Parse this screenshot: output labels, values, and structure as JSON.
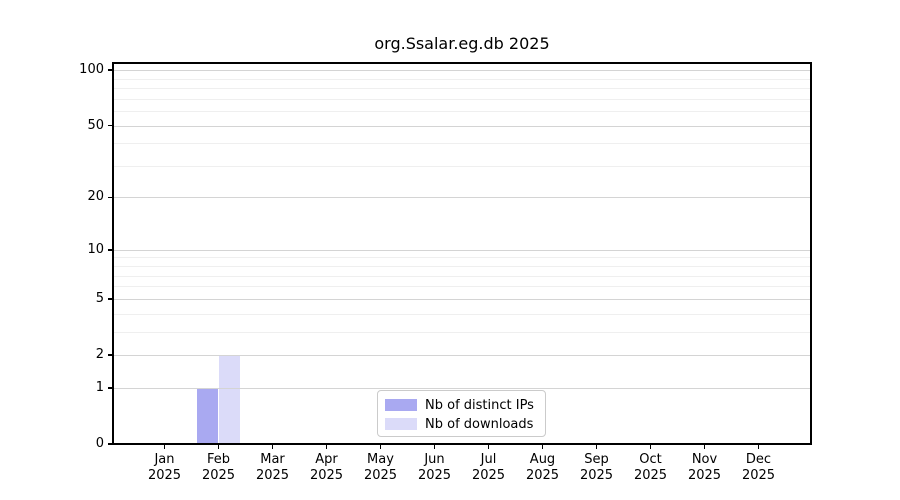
{
  "chart_data": {
    "type": "bar",
    "title": "org.Ssalar.eg.db 2025",
    "categories": [
      "Jan",
      "Feb",
      "Mar",
      "Apr",
      "May",
      "Jun",
      "Jul",
      "Aug",
      "Sep",
      "Oct",
      "Nov",
      "Dec"
    ],
    "x_tick_second_line": "2025",
    "series": [
      {
        "name": "Nb of distinct IPs",
        "color": "#a9a9f1",
        "values": [
          0,
          1,
          0,
          0,
          0,
          0,
          0,
          0,
          0,
          0,
          0,
          0
        ]
      },
      {
        "name": "Nb of downloads",
        "color": "#dbdbf9",
        "values": [
          0,
          2,
          0,
          0,
          0,
          0,
          0,
          0,
          0,
          0,
          0,
          0
        ]
      }
    ],
    "y_scale": "log1p",
    "ylim": [
      0,
      110
    ],
    "y_axis": {
      "major_ticks": [
        0,
        1,
        2,
        5,
        10,
        20,
        50,
        100
      ],
      "minor_ticks": [
        3,
        4,
        6,
        7,
        8,
        9,
        30,
        40,
        60,
        70,
        80,
        90
      ]
    },
    "grid": true,
    "legend_position": "lower center",
    "colors": {
      "major_grid": "#d4d4d4",
      "minor_grid": "#efefef",
      "axis": "#000000",
      "background": "#ffffff"
    }
  }
}
